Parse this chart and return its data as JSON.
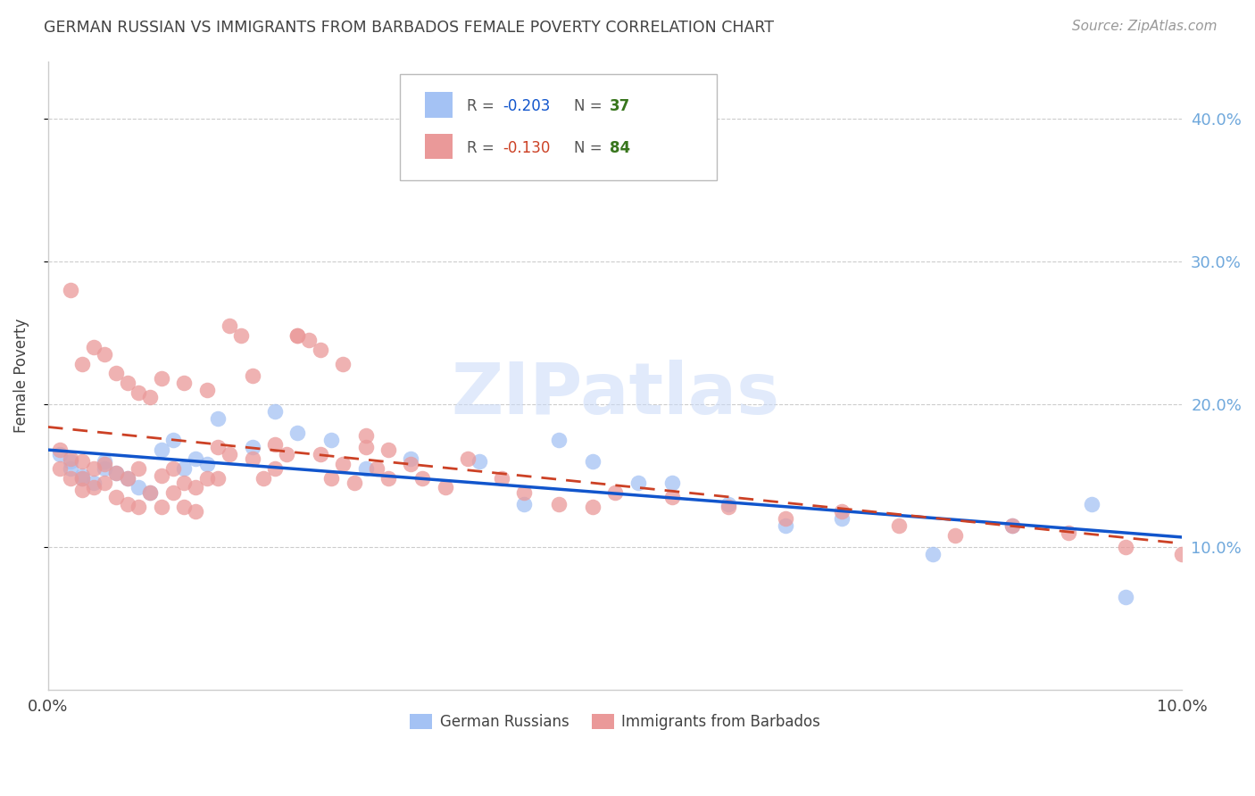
{
  "title": "GERMAN RUSSIAN VS IMMIGRANTS FROM BARBADOS FEMALE POVERTY CORRELATION CHART",
  "source": "Source: ZipAtlas.com",
  "ylabel": "Female Poverty",
  "watermark": "ZIPatlas",
  "xlim": [
    0.0,
    0.1
  ],
  "ylim": [
    0.0,
    0.44
  ],
  "yticks": [
    0.1,
    0.2,
    0.3,
    0.4
  ],
  "ytick_labels": [
    "10.0%",
    "20.0%",
    "30.0%",
    "40.0%"
  ],
  "xtick_labels": [
    "0.0%",
    "10.0%"
  ],
  "blue_color": "#a4c2f4",
  "pink_color": "#ea9999",
  "blue_line_color": "#1155cc",
  "pink_line_color": "#cc4125",
  "title_color": "#434343",
  "source_color": "#999999",
  "grid_color": "#cccccc",
  "ytick_label_color": "#6fa8dc",
  "legend_r_color_blue": "#1155cc",
  "legend_n_color_blue": "#38761d",
  "legend_r_color_pink": "#cc4125",
  "legend_n_color_pink": "#38761d",
  "blue_x": [
    0.001,
    0.002,
    0.002,
    0.003,
    0.003,
    0.004,
    0.005,
    0.005,
    0.006,
    0.007,
    0.008,
    0.009,
    0.01,
    0.011,
    0.012,
    0.013,
    0.014,
    0.015,
    0.018,
    0.02,
    0.022,
    0.025,
    0.028,
    0.032,
    0.038,
    0.042,
    0.045,
    0.048,
    0.052,
    0.055,
    0.06,
    0.065,
    0.07,
    0.078,
    0.085,
    0.092,
    0.095
  ],
  "blue_y": [
    0.165,
    0.155,
    0.16,
    0.15,
    0.148,
    0.145,
    0.155,
    0.16,
    0.152,
    0.148,
    0.142,
    0.138,
    0.168,
    0.175,
    0.155,
    0.162,
    0.158,
    0.19,
    0.17,
    0.195,
    0.18,
    0.175,
    0.155,
    0.162,
    0.16,
    0.13,
    0.175,
    0.16,
    0.145,
    0.145,
    0.13,
    0.115,
    0.12,
    0.095,
    0.115,
    0.13,
    0.065
  ],
  "pink_x": [
    0.001,
    0.001,
    0.002,
    0.002,
    0.003,
    0.003,
    0.003,
    0.004,
    0.004,
    0.005,
    0.005,
    0.006,
    0.006,
    0.007,
    0.007,
    0.008,
    0.008,
    0.009,
    0.01,
    0.01,
    0.011,
    0.011,
    0.012,
    0.012,
    0.013,
    0.013,
    0.014,
    0.015,
    0.015,
    0.016,
    0.017,
    0.018,
    0.019,
    0.02,
    0.021,
    0.022,
    0.023,
    0.024,
    0.025,
    0.026,
    0.027,
    0.028,
    0.029,
    0.03,
    0.032,
    0.033,
    0.035,
    0.037,
    0.04,
    0.042,
    0.045,
    0.048,
    0.05,
    0.055,
    0.06,
    0.065,
    0.07,
    0.075,
    0.08,
    0.085,
    0.09,
    0.095,
    0.1,
    0.003,
    0.004,
    0.005,
    0.006,
    0.007,
    0.008,
    0.009,
    0.01,
    0.012,
    0.014,
    0.016,
    0.018,
    0.02,
    0.022,
    0.024,
    0.026,
    0.028,
    0.03,
    0.002
  ],
  "pink_y": [
    0.168,
    0.155,
    0.162,
    0.148,
    0.16,
    0.148,
    0.14,
    0.155,
    0.142,
    0.158,
    0.145,
    0.152,
    0.135,
    0.148,
    0.13,
    0.155,
    0.128,
    0.138,
    0.15,
    0.128,
    0.155,
    0.138,
    0.145,
    0.128,
    0.142,
    0.125,
    0.148,
    0.17,
    0.148,
    0.165,
    0.248,
    0.162,
    0.148,
    0.155,
    0.165,
    0.248,
    0.245,
    0.165,
    0.148,
    0.158,
    0.145,
    0.17,
    0.155,
    0.148,
    0.158,
    0.148,
    0.142,
    0.162,
    0.148,
    0.138,
    0.13,
    0.128,
    0.138,
    0.135,
    0.128,
    0.12,
    0.125,
    0.115,
    0.108,
    0.115,
    0.11,
    0.1,
    0.095,
    0.228,
    0.24,
    0.235,
    0.222,
    0.215,
    0.208,
    0.205,
    0.218,
    0.215,
    0.21,
    0.255,
    0.22,
    0.172,
    0.248,
    0.238,
    0.228,
    0.178,
    0.168,
    0.28
  ]
}
